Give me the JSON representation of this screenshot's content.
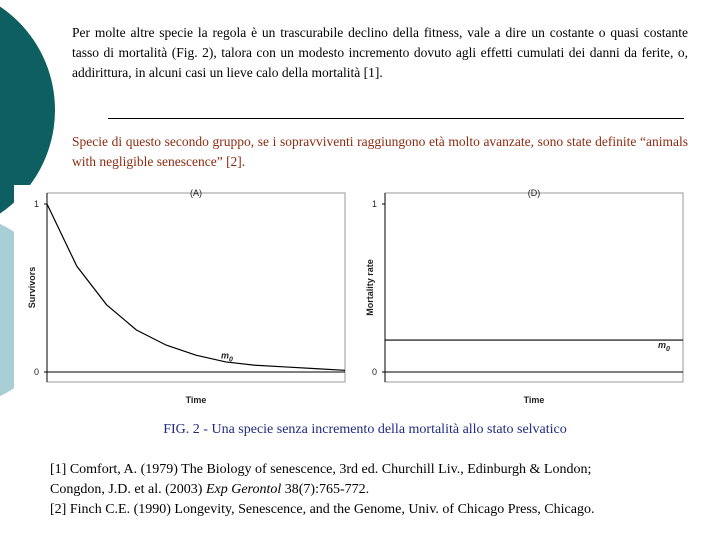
{
  "paragraph_1": "Per molte altre specie la regola è un trascurabile declino della fitness, vale a dire un costante o quasi costante tasso di mortalità (Fig. 2), talora con un modesto incremento dovuto agli effetti cumulati dei danni da ferite, o, addirittura, in alcuni casi un lieve calo della mortalità [1].",
  "paragraph_2": "Specie di questo secondo gruppo, se i sopravviventi raggiungono età molto avanzate, sono state definite “animals with negligible senescence” [2].",
  "chart_data": [
    {
      "type": "line",
      "title": "(A)",
      "x_label": "Time",
      "y_label": "Survivors",
      "annotation": {
        "text": "m",
        "sub": "0"
      },
      "x": [
        0,
        1,
        2,
        3,
        4,
        5,
        6,
        7,
        8,
        9,
        10
      ],
      "values": [
        1,
        0.63,
        0.4,
        0.25,
        0.16,
        0.1,
        0.06,
        0.04,
        0.03,
        0.02,
        0.01
      ],
      "color": "#000000",
      "xlim": [
        0,
        10
      ],
      "ylim": [
        0,
        1
      ],
      "yticks": [
        0,
        1
      ]
    },
    {
      "type": "line",
      "title": "(D)",
      "x_label": "Time",
      "y_label": "Mortality rate",
      "annotation": {
        "text": "m",
        "sub": "0"
      },
      "x": [
        0,
        10
      ],
      "values": [
        0.19,
        0.19
      ],
      "color": "#000000",
      "xlim": [
        0,
        10
      ],
      "ylim": [
        0,
        1
      ],
      "yticks": [
        0,
        1
      ]
    }
  ],
  "caption": "FIG. 2 - Una specie senza incremento della mortalità allo stato selvatico",
  "references": [
    {
      "before": "[1] Comfort, A. (1979) The Biology of senescence, 3rd ed. Churchill Liv., Edinburgh & London;"
    },
    {
      "before": "Congdon, J.D. et al. (2003) ",
      "journal": "Exp Gerontol",
      "after": " 38(7):765-772."
    },
    {
      "before": "[2] Finch C.E. (1990) Longevity, Senescence, and the Genome, Univ. of Chicago Press, Chicago."
    }
  ]
}
